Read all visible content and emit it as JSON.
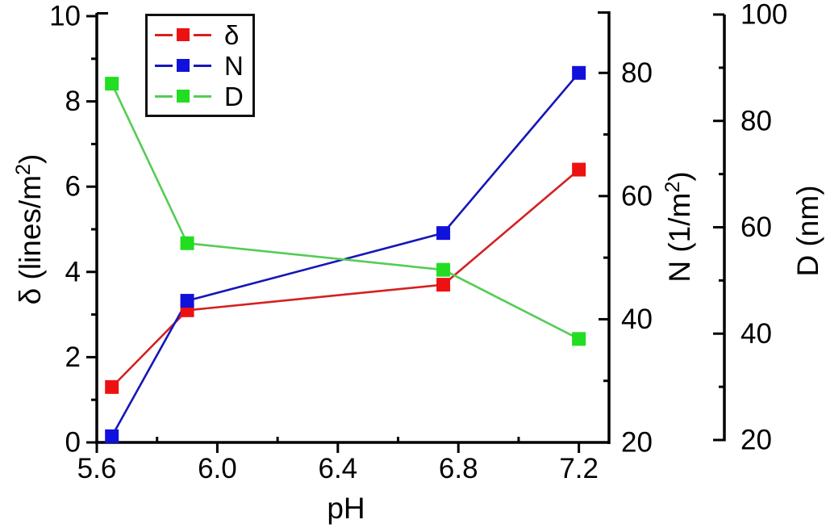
{
  "chart_data": {
    "type": "line",
    "title": "",
    "xlabel": "pH",
    "x": [
      5.65,
      5.9,
      6.75,
      7.2
    ],
    "axes": {
      "x": {
        "label": "pH",
        "range": [
          5.6,
          7.3
        ],
        "major_tick_labels": [
          "5.6",
          "6.0",
          "6.4",
          "6.8",
          "7.2"
        ],
        "minor_ticks": [
          5.8,
          6.2,
          6.6,
          7.0
        ]
      },
      "left": {
        "label": "δ (lines/m²)",
        "range": [
          0,
          10
        ],
        "major_tick_labels": [
          "0",
          "2",
          "4",
          "6",
          "8",
          "10"
        ],
        "minor_ticks": [
          1,
          3,
          5,
          7,
          9
        ]
      },
      "right_n": {
        "label": "N (1/m²)",
        "range": [
          20,
          90
        ],
        "major_tick_labels": [
          "20",
          "40",
          "60",
          "80"
        ],
        "minor_ticks": [
          30,
          50,
          70
        ]
      },
      "right_d": {
        "label": "D (nm)",
        "range": [
          20,
          100
        ],
        "major_tick_labels": [
          "20",
          "40",
          "60",
          "80",
          "100"
        ],
        "minor_ticks": [
          30,
          50,
          70,
          90
        ]
      }
    },
    "series": [
      {
        "id": "delta",
        "name": "δ",
        "axis": "left",
        "line_color": "#d42020",
        "marker_color": "#ee1111",
        "marker": "square",
        "values": [
          1.3,
          3.1,
          3.7,
          6.4
        ]
      },
      {
        "id": "n",
        "name": "N",
        "axis": "right_n",
        "line_color": "#1616b8",
        "marker_color": "#1111dd",
        "marker": "square",
        "values": [
          21,
          43,
          54,
          80
        ]
      },
      {
        "id": "d",
        "name": "D",
        "axis": "right_d",
        "line_color": "#55cc55",
        "marker_color": "#22dd22",
        "marker": "square",
        "values": [
          87,
          57,
          52,
          39
        ]
      }
    ],
    "legend": {
      "position": "top-left",
      "entries": [
        "δ",
        "N",
        "D"
      ]
    },
    "grid": false,
    "background": "#ffffff",
    "axis_color": "#000000"
  }
}
